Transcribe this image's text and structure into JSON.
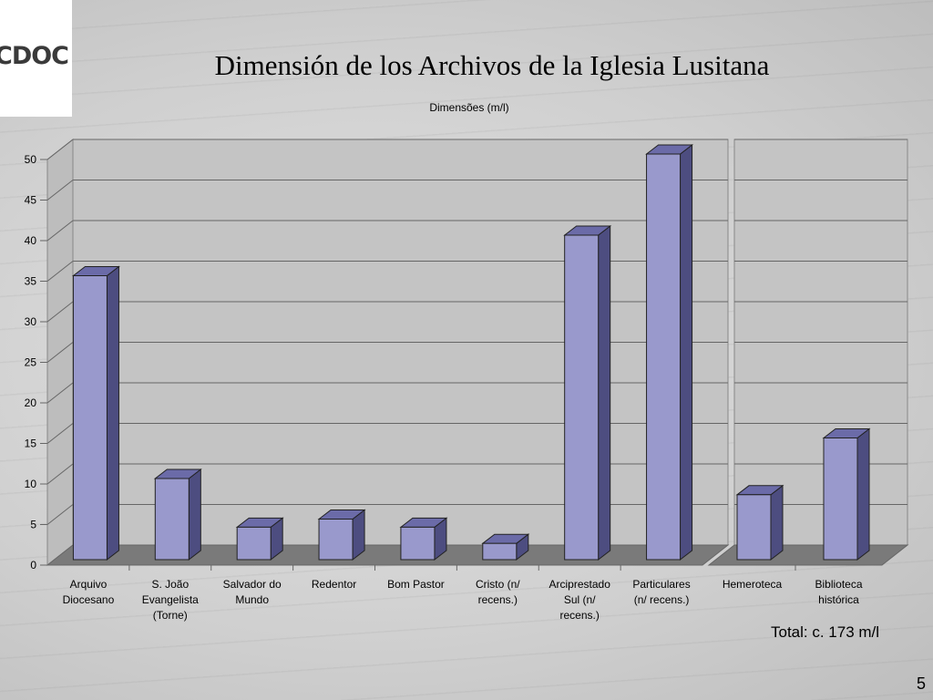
{
  "slide": {
    "title": "Dimensión de los Archivos de la Iglesia Lusitana",
    "total_label": "Total: c. 173 m/l",
    "page_number": "5",
    "logo_text": "CDOC"
  },
  "chart_data": {
    "type": "bar",
    "title": "Dimensões (m/l)",
    "xlabel": "",
    "ylabel": "",
    "ylim": [
      0,
      50
    ],
    "yticks": [
      "0",
      "5",
      "10",
      "15",
      "20",
      "25",
      "30",
      "35",
      "40",
      "45",
      "50"
    ],
    "grid": true,
    "legend": "none",
    "bar_color": "#9999cc",
    "panels": [
      {
        "categories": [
          [
            "Arquivo",
            "Diocesano"
          ],
          [
            "S. João",
            "Evangelista",
            "(Torne)"
          ],
          [
            "Salvador do",
            "Mundo"
          ],
          [
            "Redentor"
          ],
          [
            "Bom Pastor"
          ],
          [
            "Cristo (n/",
            "recens.)"
          ],
          [
            "Arciprestado",
            "Sul (n/",
            "recens.)"
          ],
          [
            "Particulares",
            "(n/ recens.)"
          ]
        ],
        "values": [
          35,
          10,
          4,
          5,
          4,
          2,
          40,
          50
        ]
      },
      {
        "categories": [
          [
            "Hemeroteca"
          ],
          [
            "Biblioteca",
            "histórica"
          ]
        ],
        "values": [
          8,
          15
        ]
      }
    ]
  }
}
